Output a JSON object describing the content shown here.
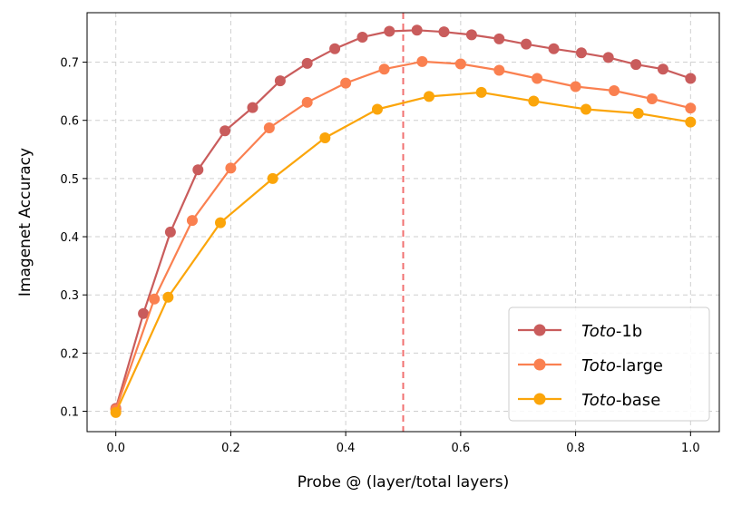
{
  "chart_data": {
    "type": "line",
    "title": "",
    "xlabel": "Probe @ (layer/total layers)",
    "ylabel": "Imagenet Accuracy",
    "xlim": [
      -0.05,
      1.05
    ],
    "ylim": [
      0.065,
      0.785
    ],
    "xticks": [
      "0.0",
      "0.2",
      "0.4",
      "0.6",
      "0.8",
      "1.0"
    ],
    "yticks": [
      "0.1",
      "0.2",
      "0.3",
      "0.4",
      "0.5",
      "0.6",
      "0.7"
    ],
    "grid": true,
    "legend_position": "bottom-right",
    "reference_line": {
      "x": 0.5,
      "style": "dashed",
      "color": "#f07070"
    },
    "series": [
      {
        "name": "Toto-1b",
        "name_italic": "Toto",
        "name_rest": "-1b",
        "color": "#c95c5c",
        "x": [
          0.0,
          0.048,
          0.095,
          0.143,
          0.19,
          0.238,
          0.286,
          0.333,
          0.381,
          0.429,
          0.476,
          0.524,
          0.571,
          0.619,
          0.667,
          0.714,
          0.762,
          0.81,
          0.857,
          0.905,
          0.952,
          1.0
        ],
        "y": [
          0.105,
          0.268,
          0.408,
          0.515,
          0.582,
          0.622,
          0.668,
          0.698,
          0.723,
          0.743,
          0.753,
          0.755,
          0.752,
          0.747,
          0.74,
          0.731,
          0.723,
          0.716,
          0.708,
          0.696,
          0.688,
          0.672
        ]
      },
      {
        "name": "Toto-large",
        "name_italic": "Toto",
        "name_rest": "-large",
        "color": "#fa8050",
        "x": [
          0.0,
          0.067,
          0.133,
          0.2,
          0.267,
          0.333,
          0.4,
          0.467,
          0.533,
          0.6,
          0.667,
          0.733,
          0.8,
          0.867,
          0.933,
          1.0
        ],
        "y": [
          0.103,
          0.293,
          0.428,
          0.518,
          0.587,
          0.631,
          0.664,
          0.688,
          0.701,
          0.697,
          0.686,
          0.672,
          0.658,
          0.651,
          0.637,
          0.621
        ]
      },
      {
        "name": "Toto-base",
        "name_italic": "Toto",
        "name_rest": "-base",
        "color": "#fba50a",
        "x": [
          0.0,
          0.091,
          0.182,
          0.273,
          0.364,
          0.455,
          0.545,
          0.636,
          0.727,
          0.818,
          0.909,
          1.0
        ],
        "y": [
          0.098,
          0.296,
          0.424,
          0.5,
          0.57,
          0.619,
          0.641,
          0.648,
          0.633,
          0.619,
          0.612,
          0.597
        ]
      }
    ]
  }
}
